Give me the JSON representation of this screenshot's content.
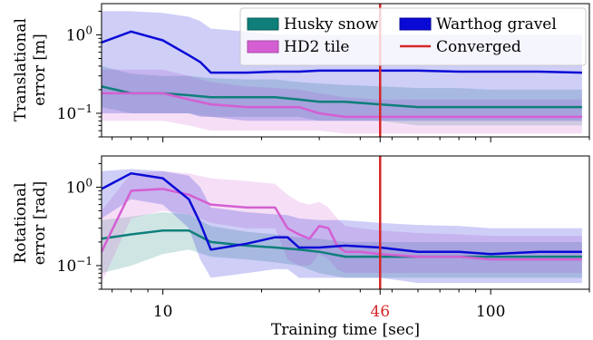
{
  "chart_data": [
    {
      "type": "area",
      "ylabel": [
        "Translational",
        "error [m]"
      ],
      "yscale": "log",
      "ylim": [
        0.05,
        2.5
      ],
      "yticks": [
        {
          "value": 0.1,
          "base": "10",
          "exp": "−1"
        },
        {
          "value": 1,
          "base": "10",
          "exp": "0"
        }
      ],
      "legend": {
        "placement": "top-right",
        "columns": 2
      },
      "series": [
        {
          "name": "Husky snow",
          "color": "#0f7f7a",
          "x": [
            6.5,
            8,
            10,
            12,
            14,
            18,
            22,
            26,
            30,
            36,
            46,
            60,
            80,
            100,
            140,
            190
          ],
          "y": [
            0.22,
            0.18,
            0.18,
            0.17,
            0.16,
            0.16,
            0.16,
            0.15,
            0.14,
            0.14,
            0.13,
            0.12,
            0.12,
            0.12,
            0.12,
            0.12
          ],
          "lower": [
            0.12,
            0.1,
            0.1,
            0.1,
            0.09,
            0.09,
            0.09,
            0.09,
            0.08,
            0.08,
            0.08,
            0.07,
            0.07,
            0.07,
            0.07,
            0.07
          ],
          "upper": [
            0.4,
            0.32,
            0.3,
            0.3,
            0.28,
            0.27,
            0.27,
            0.25,
            0.24,
            0.23,
            0.22,
            0.21,
            0.21,
            0.2,
            0.2,
            0.2
          ]
        },
        {
          "name": "HD2 tile",
          "color": "#d45fd2",
          "x": [
            6.5,
            8,
            10,
            12,
            14,
            18,
            22,
            26,
            30,
            36,
            46,
            60,
            80,
            100,
            140,
            190
          ],
          "y": [
            0.18,
            0.18,
            0.18,
            0.15,
            0.13,
            0.12,
            0.12,
            0.12,
            0.1,
            0.09,
            0.09,
            0.09,
            0.09,
            0.09,
            0.09,
            0.09
          ],
          "lower": [
            0.08,
            0.08,
            0.08,
            0.07,
            0.06,
            0.06,
            0.06,
            0.06,
            0.06,
            0.055,
            0.055,
            0.055,
            0.055,
            0.055,
            0.055,
            0.055
          ],
          "upper": [
            0.36,
            0.36,
            0.36,
            0.3,
            0.25,
            0.22,
            0.21,
            0.2,
            0.18,
            0.16,
            0.15,
            0.15,
            0.15,
            0.15,
            0.15,
            0.15
          ]
        },
        {
          "name": "Warthog gravel",
          "color": "#0a0ad6",
          "x": [
            6.5,
            8,
            10,
            12,
            13,
            14,
            18,
            22,
            26,
            30,
            36,
            46,
            60,
            80,
            100,
            140,
            190
          ],
          "y": [
            0.8,
            1.1,
            0.85,
            0.55,
            0.45,
            0.33,
            0.33,
            0.34,
            0.34,
            0.35,
            0.35,
            0.35,
            0.35,
            0.34,
            0.34,
            0.34,
            0.33
          ],
          "lower": [
            0.1,
            0.1,
            0.1,
            0.1,
            0.09,
            0.09,
            0.08,
            0.08,
            0.08,
            0.08,
            0.08,
            0.08,
            0.08,
            0.08,
            0.08,
            0.08,
            0.08
          ],
          "upper": [
            2.0,
            2.0,
            1.9,
            1.7,
            1.5,
            1.2,
            1.1,
            1.0,
            1.0,
            1.0,
            1.0,
            1.0,
            1.0,
            1.0,
            1.0,
            1.0,
            1.0
          ]
        }
      ]
    },
    {
      "type": "area",
      "ylabel": [
        "Rotational",
        "error [rad]"
      ],
      "yscale": "log",
      "ylim": [
        0.05,
        2.5
      ],
      "yticks": [
        {
          "value": 0.1,
          "base": "10",
          "exp": "−1"
        },
        {
          "value": 1,
          "base": "10",
          "exp": "0"
        }
      ],
      "series": [
        {
          "name": "Husky snow",
          "color": "#0f7f7a",
          "x": [
            6.5,
            8,
            10,
            12,
            14,
            18,
            22,
            26,
            30,
            36,
            46,
            60,
            80,
            100,
            140,
            190
          ],
          "y": [
            0.22,
            0.25,
            0.28,
            0.28,
            0.2,
            0.18,
            0.17,
            0.16,
            0.15,
            0.13,
            0.13,
            0.13,
            0.13,
            0.13,
            0.13,
            0.13
          ],
          "lower": [
            0.08,
            0.1,
            0.14,
            0.16,
            0.13,
            0.12,
            0.11,
            0.1,
            0.08,
            0.07,
            0.07,
            0.07,
            0.07,
            0.07,
            0.07,
            0.07
          ],
          "upper": [
            0.38,
            0.42,
            0.48,
            0.45,
            0.32,
            0.27,
            0.25,
            0.23,
            0.22,
            0.2,
            0.2,
            0.2,
            0.2,
            0.2,
            0.2,
            0.2
          ]
        },
        {
          "name": "HD2 tile",
          "color": "#d45fd2",
          "x": [
            6.5,
            8,
            10,
            12,
            14,
            18,
            22,
            24,
            26,
            28,
            30,
            32,
            34,
            36,
            40,
            46,
            60,
            80,
            100,
            140,
            190
          ],
          "y": [
            0.15,
            0.9,
            0.95,
            0.8,
            0.6,
            0.55,
            0.55,
            0.3,
            0.25,
            0.22,
            0.32,
            0.3,
            0.18,
            0.15,
            0.15,
            0.14,
            0.13,
            0.13,
            0.12,
            0.12,
            0.12
          ],
          "lower": [
            0.06,
            0.4,
            0.5,
            0.45,
            0.35,
            0.3,
            0.3,
            0.12,
            0.1,
            0.1,
            0.14,
            0.12,
            0.09,
            0.08,
            0.08,
            0.08,
            0.08,
            0.08,
            0.08,
            0.08,
            0.08
          ],
          "upper": [
            0.5,
            1.5,
            1.6,
            1.5,
            1.3,
            1.2,
            1.1,
            0.8,
            0.65,
            0.6,
            0.65,
            0.55,
            0.4,
            0.32,
            0.3,
            0.28,
            0.26,
            0.25,
            0.24,
            0.24,
            0.24
          ]
        },
        {
          "name": "Warthog gravel",
          "color": "#0a0ad6",
          "x": [
            6.5,
            8,
            10,
            12,
            13,
            14,
            18,
            22,
            24,
            26,
            30,
            36,
            46,
            60,
            80,
            100,
            140,
            190
          ],
          "y": [
            0.95,
            1.5,
            1.3,
            0.7,
            0.35,
            0.16,
            0.19,
            0.23,
            0.23,
            0.17,
            0.17,
            0.18,
            0.17,
            0.15,
            0.15,
            0.14,
            0.15,
            0.15
          ],
          "lower": [
            0.4,
            0.7,
            0.6,
            0.3,
            0.12,
            0.07,
            0.08,
            0.09,
            0.09,
            0.07,
            0.07,
            0.07,
            0.07,
            0.06,
            0.06,
            0.06,
            0.06,
            0.06
          ],
          "upper": [
            1.6,
            1.7,
            1.6,
            1.4,
            1.0,
            0.55,
            0.48,
            0.45,
            0.44,
            0.4,
            0.38,
            0.38,
            0.35,
            0.33,
            0.32,
            0.3,
            0.3,
            0.3
          ]
        }
      ]
    }
  ],
  "xaxis": {
    "label": "Training time [sec]",
    "scale": "log",
    "xlim": [
      6.5,
      200
    ],
    "ticks": [
      10,
      100
    ],
    "tick_labels": [
      "10",
      "100"
    ]
  },
  "converged": {
    "label": "Converged",
    "x": 46,
    "tick_label": "46",
    "color": "#d62728"
  }
}
